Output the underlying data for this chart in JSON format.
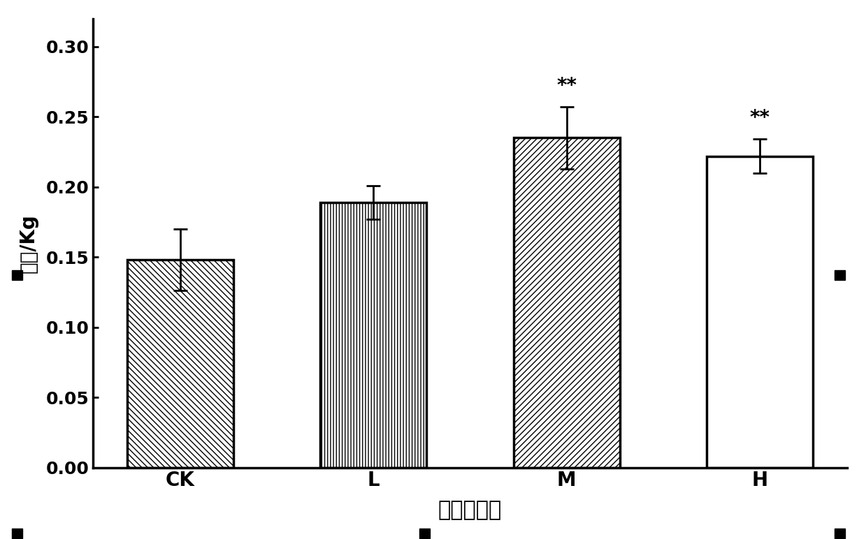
{
  "categories": [
    "CK",
    "L",
    "M",
    "H"
  ],
  "values": [
    0.148,
    0.189,
    0.235,
    0.222
  ],
  "errors": [
    0.022,
    0.012,
    0.022,
    0.012
  ],
  "annotations": [
    "",
    "",
    "**",
    "**"
  ],
  "xlabel": "平均日增重",
  "ylabel": "重量/Kg",
  "ylim": [
    0.0,
    0.32
  ],
  "yticks": [
    0.0,
    0.05,
    0.1,
    0.15,
    0.2,
    0.25,
    0.3
  ],
  "bar_color": "#ffffff",
  "bar_edgecolor": "#000000",
  "background_color": "#ffffff",
  "bar_width": 0.55,
  "annotation_fontsize": 20,
  "xlabel_fontsize": 22,
  "ylabel_fontsize": 20,
  "tick_fontsize": 18,
  "category_fontsize": 20
}
